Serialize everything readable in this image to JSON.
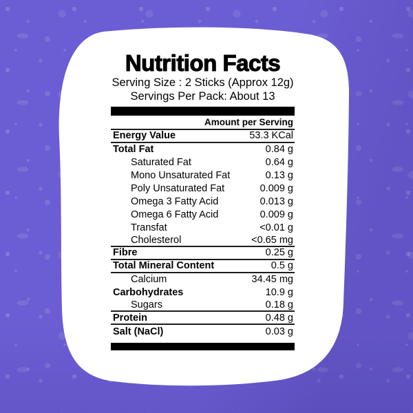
{
  "colors": {
    "background": "#6b5dd3",
    "speckle": "#8477e0",
    "card": "#ffffff",
    "ink": "#000000",
    "bar": "#000000",
    "rule": "#1c1c1c"
  },
  "label": {
    "title": "Nutrition Facts",
    "serving_size": "Serving Size : 2 Sticks (Approx 12g)",
    "servings_per_pack": "Servings Per Pack: About 13",
    "column_header": "Amount per Serving",
    "rows": [
      {
        "label": "Energy Value",
        "value": "53.3 KCal",
        "bold": true,
        "indent": false,
        "divider": true
      },
      {
        "label": "Total Fat",
        "value": "0.84 g",
        "bold": true,
        "indent": false,
        "divider": false
      },
      {
        "label": "Saturated Fat",
        "value": "0.64 g",
        "bold": false,
        "indent": true,
        "divider": false
      },
      {
        "label": "Mono Unsaturated Fat",
        "value": "0.13 g",
        "bold": false,
        "indent": true,
        "divider": false
      },
      {
        "label": "Poly Unsaturated Fat",
        "value": "0.009 g",
        "bold": false,
        "indent": true,
        "divider": false
      },
      {
        "label": "Omega 3 Fatty Acid",
        "value": "0.013 g",
        "bold": false,
        "indent": true,
        "divider": false
      },
      {
        "label": "Omega 6 Fatty Acid",
        "value": "0.009 g",
        "bold": false,
        "indent": true,
        "divider": false
      },
      {
        "label": "Transfat",
        "value": "<0.01 g",
        "bold": false,
        "indent": true,
        "divider": false
      },
      {
        "label": "Cholesterol",
        "value": "<0.65 mg",
        "bold": false,
        "indent": true,
        "divider": true
      },
      {
        "label": "Fibre",
        "value": "0.25 g",
        "bold": true,
        "indent": false,
        "divider": true
      },
      {
        "label": "Total Mineral Content",
        "value": "0.5 g",
        "bold": true,
        "indent": false,
        "divider": true
      },
      {
        "label": "Calcium",
        "value": "34.45 mg",
        "bold": false,
        "indent": true,
        "divider": false
      },
      {
        "label": "Carbohydrates",
        "value": "10.9 g",
        "bold": true,
        "indent": false,
        "divider": false
      },
      {
        "label": "Sugars",
        "value": "0.18 g",
        "bold": false,
        "indent": true,
        "divider": true
      },
      {
        "label": "Protein",
        "value": "0.48 g",
        "bold": true,
        "indent": false,
        "divider": true
      },
      {
        "label": "Salt (NaCl)",
        "value": "0.03 g",
        "bold": true,
        "indent": false,
        "divider": false
      }
    ]
  }
}
